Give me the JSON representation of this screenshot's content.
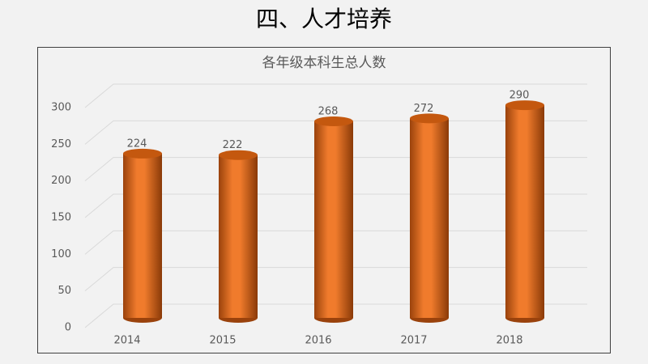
{
  "header": {
    "title": "四、人才培养"
  },
  "chart_data": {
    "type": "bar",
    "title": "各年级本科生总人数",
    "categories": [
      "2014",
      "2015",
      "2016",
      "2017",
      "2018"
    ],
    "values": [
      224,
      222,
      268,
      272,
      290
    ],
    "color": "#f07b2c",
    "ylim": [
      0,
      300
    ],
    "yticks": [
      0,
      50,
      100,
      150,
      200,
      250,
      300
    ],
    "grid": true
  }
}
